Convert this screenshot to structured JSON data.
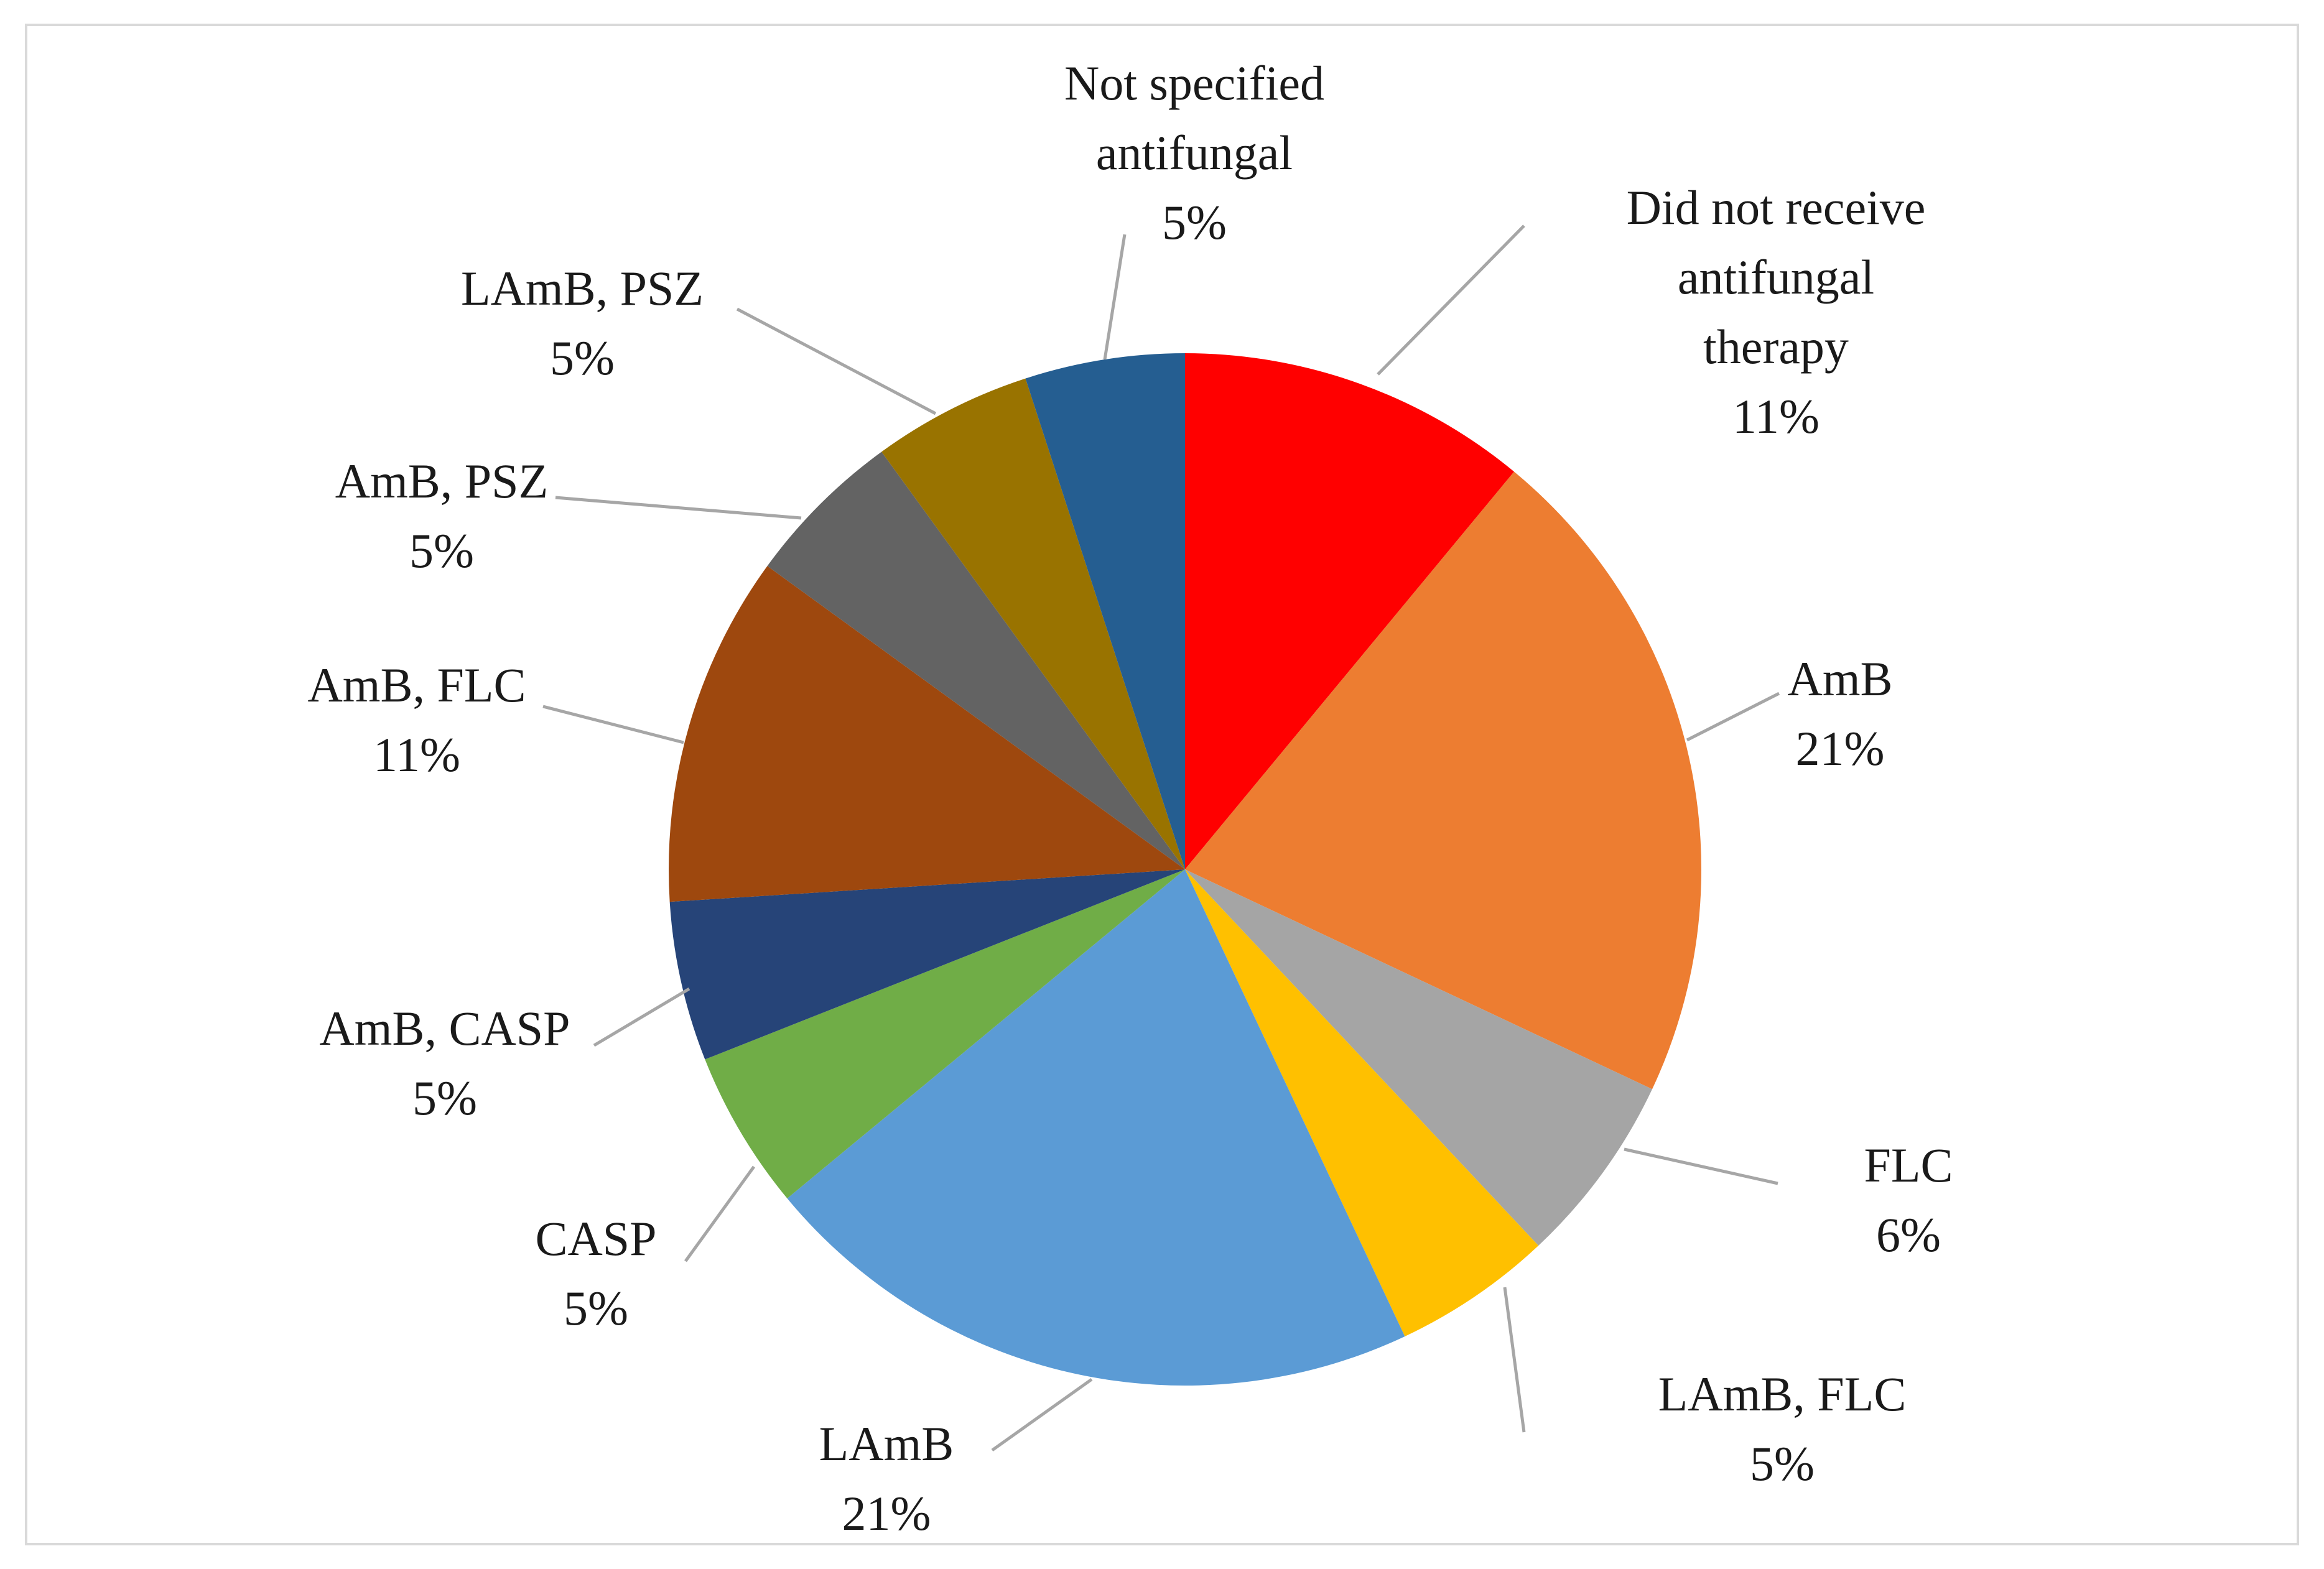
{
  "chart_data": {
    "type": "pie",
    "title": "",
    "slices": [
      {
        "name": "Did not receive antifungal therapy",
        "label_lines": [
          "Did not receive",
          "antifungal",
          "therapy"
        ],
        "value": 11,
        "value_label": "11%",
        "color": "#ff0000"
      },
      {
        "name": "AmB",
        "label_lines": [
          "AmB"
        ],
        "value": 21,
        "value_label": "21%",
        "color": "#ed7d31"
      },
      {
        "name": "FLC",
        "label_lines": [
          "FLC"
        ],
        "value": 6,
        "value_label": "6%",
        "color": "#a5a5a5"
      },
      {
        "name": "LAmB, FLC",
        "label_lines": [
          "LAmB, FLC"
        ],
        "value": 5,
        "value_label": "5%",
        "color": "#ffc000"
      },
      {
        "name": "LAmB",
        "label_lines": [
          "LAmB"
        ],
        "value": 21,
        "value_label": "21%",
        "color": "#5b9bd5"
      },
      {
        "name": "CASP",
        "label_lines": [
          "CASP"
        ],
        "value": 5,
        "value_label": "5%",
        "color": "#70ad47"
      },
      {
        "name": "AmB, CASP",
        "label_lines": [
          "AmB, CASP"
        ],
        "value": 5,
        "value_label": "5%",
        "color": "#264478"
      },
      {
        "name": "AmB, FLC",
        "label_lines": [
          "AmB, FLC"
        ],
        "value": 11,
        "value_label": "11%",
        "color": "#9e480e"
      },
      {
        "name": "AmB, PSZ",
        "label_lines": [
          "AmB, PSZ"
        ],
        "value": 5,
        "value_label": "5%",
        "color": "#636363"
      },
      {
        "name": "LAmB, PSZ",
        "label_lines": [
          "LAmB, PSZ"
        ],
        "value": 5,
        "value_label": "5%",
        "color": "#997300"
      },
      {
        "name": "Not specified antifungal",
        "label_lines": [
          "Not specified",
          "antifungal"
        ],
        "value": 5,
        "value_label": "5%",
        "color": "#255e91"
      }
    ]
  }
}
